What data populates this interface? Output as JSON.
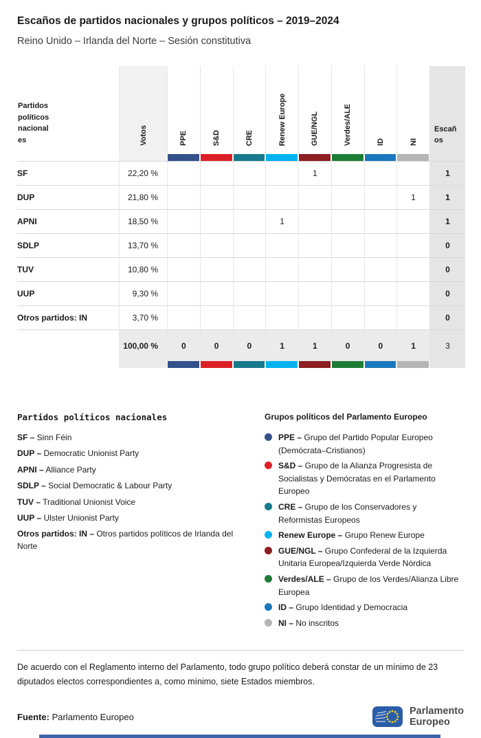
{
  "page": {
    "title": "Escaños de partidos nacionales y grupos políticos – 2019–2024",
    "subtitle": "Reino Unido – Irlanda del Norte – Sesión constitutiva"
  },
  "chart_data": {
    "type": "table",
    "title": "Escaños de partidos nacionales y grupos políticos – 2019–2024",
    "subtitle": "Reino Unido – Irlanda del Norte – Sesión constitutiva",
    "party_header": "Partidos políticos nacionales",
    "votes_header": "Votos",
    "seats_header": "Escaños",
    "groups": [
      {
        "id": "ppe",
        "label": "PPE",
        "color": "#33518b"
      },
      {
        "id": "sd",
        "label": "S&D",
        "color": "#dd2025"
      },
      {
        "id": "cre",
        "label": "CRE",
        "color": "#177a8c"
      },
      {
        "id": "renew",
        "label": "Renew Europe",
        "color": "#00b3f0"
      },
      {
        "id": "guengl",
        "label": "GUE/NGL",
        "color": "#8c1d20"
      },
      {
        "id": "verdesale",
        "label": "Verdes/ALE",
        "color": "#1e7d35"
      },
      {
        "id": "id",
        "label": "ID",
        "color": "#1a78be"
      },
      {
        "id": "ni",
        "label": "NI",
        "color": "#b5b5b5"
      }
    ],
    "rows": [
      {
        "party": "SF",
        "votes": "22,20 %",
        "votes_pct": 22.2,
        "cells": [
          "",
          "",
          "",
          "",
          "1",
          "",
          "",
          ""
        ],
        "seats": "1"
      },
      {
        "party": "DUP",
        "votes": "21,80 %",
        "votes_pct": 21.8,
        "cells": [
          "",
          "",
          "",
          "",
          "",
          "",
          "",
          "1"
        ],
        "seats": "1"
      },
      {
        "party": "APNI",
        "votes": "18,50 %",
        "votes_pct": 18.5,
        "cells": [
          "",
          "",
          "",
          "1",
          "",
          "",
          "",
          ""
        ],
        "seats": "1"
      },
      {
        "party": "SDLP",
        "votes": "13,70 %",
        "votes_pct": 13.7,
        "cells": [
          "",
          "",
          "",
          "",
          "",
          "",
          "",
          ""
        ],
        "seats": "0"
      },
      {
        "party": "TUV",
        "votes": "10,80 %",
        "votes_pct": 10.8,
        "cells": [
          "",
          "",
          "",
          "",
          "",
          "",
          "",
          ""
        ],
        "seats": "0"
      },
      {
        "party": "UUP",
        "votes": "9,30 %",
        "votes_pct": 9.3,
        "cells": [
          "",
          "",
          "",
          "",
          "",
          "",
          "",
          ""
        ],
        "seats": "0"
      },
      {
        "party": "Otros partidos: IN",
        "votes": "3,70 %",
        "votes_pct": 3.7,
        "cells": [
          "",
          "",
          "",
          "",
          "",
          "",
          "",
          ""
        ],
        "seats": "0"
      }
    ],
    "total": {
      "votes": "100,00 %",
      "votes_pct": 100,
      "cells": [
        "0",
        "0",
        "0",
        "1",
        "1",
        "0",
        "0",
        "1"
      ],
      "seats": "3"
    }
  },
  "legend_parties": {
    "title": "Partidos políticos nacionales",
    "items": [
      {
        "abbr": "SF –",
        "name": "Sinn Féin"
      },
      {
        "abbr": "DUP –",
        "name": "Democratic Unionist Party"
      },
      {
        "abbr": "APNI –",
        "name": "Alliance Party"
      },
      {
        "abbr": "SDLP –",
        "name": "Social Democratic & Labour Party"
      },
      {
        "abbr": "TUV –",
        "name": "Traditional Unionist Voice"
      },
      {
        "abbr": "UUP –",
        "name": "Ulster Unionist Party"
      },
      {
        "abbr": "Otros partidos: IN –",
        "name": "Otros partidos políticos de Irlanda del Norte"
      }
    ]
  },
  "legend_groups": {
    "title": "Grupos políticos del Parlamento Europeo",
    "items": [
      {
        "id": "ppe",
        "color": "#33518b",
        "abbr": "PPE –",
        "name": "Grupo del Partido Popular Europeo (Demócrata–Cristianos)"
      },
      {
        "id": "sd",
        "color": "#dd2025",
        "abbr": "S&D –",
        "name": "Grupo de la Alianza Progresista de Socialistas y Demócratas en el Parlamento Europeo"
      },
      {
        "id": "cre",
        "color": "#177a8c",
        "abbr": "CRE –",
        "name": "Grupo de los Conservadores y Reformistas Europeos"
      },
      {
        "id": "renew",
        "color": "#00b3f0",
        "abbr": "Renew Europe –",
        "name": "Grupo Renew Europe"
      },
      {
        "id": "guengl",
        "color": "#8c1d20",
        "abbr": "GUE/NGL –",
        "name": "Grupo Confederal de la Izquierda Unitaria Europea/Izquierda Verde Nórdica"
      },
      {
        "id": "verdesale",
        "color": "#1e7d35",
        "abbr": "Verdes/ALE –",
        "name": "Grupo de los Verdes/Alianza Libre Europea"
      },
      {
        "id": "id",
        "color": "#1a78be",
        "abbr": "ID –",
        "name": "Grupo Identidad y Democracia"
      },
      {
        "id": "ni",
        "color": "#b5b5b5",
        "abbr": "NI –",
        "name": "No inscritos"
      }
    ]
  },
  "footer": {
    "note": "De acuerdo con el Reglamento interno del Parlamento, todo grupo político deberá constar de un mínimo de 23 diputados electos correspondientes a, como mínimo, siete Estados miembros.",
    "source_label": "Fuente:",
    "source_value": "Parlamento Europeo",
    "logo_line1": "Parlamento",
    "logo_line2": "Europeo"
  }
}
